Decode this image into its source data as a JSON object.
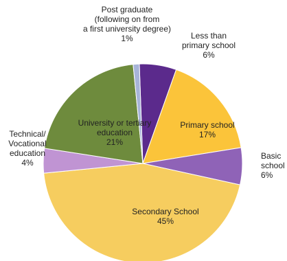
{
  "chart_data": {
    "type": "pie",
    "title": "",
    "categories": [
      "Less than primary school",
      "Primary school",
      "Basic school",
      "Secondary School",
      "Technical/ Vocational education",
      "University or tertiary education",
      "Post graduate (following on from a first university degree)"
    ],
    "values": [
      6,
      17,
      6,
      45,
      4,
      21,
      1
    ],
    "colors": [
      "#5b2a8c",
      "#fbc43a",
      "#8f63b7",
      "#f6cd5f",
      "#c094d3",
      "#6e8b3d",
      "#a7b4d8"
    ],
    "labels": [
      {
        "lines": [
          "Less than",
          "primary school",
          "6%"
        ]
      },
      {
        "lines": [
          "Primary school",
          "17%"
        ]
      },
      {
        "lines": [
          "Basic",
          "school",
          "6%"
        ]
      },
      {
        "lines": [
          "Secondary School",
          "45%"
        ]
      },
      {
        "lines": [
          "Technical/",
          "Vocational",
          "education",
          "4%"
        ]
      },
      {
        "lines": [
          "University or tertiary",
          "education",
          "21%"
        ]
      },
      {
        "lines": [
          "Post graduate",
          "(following on from",
          "a first university degree)",
          "1%"
        ]
      }
    ]
  }
}
